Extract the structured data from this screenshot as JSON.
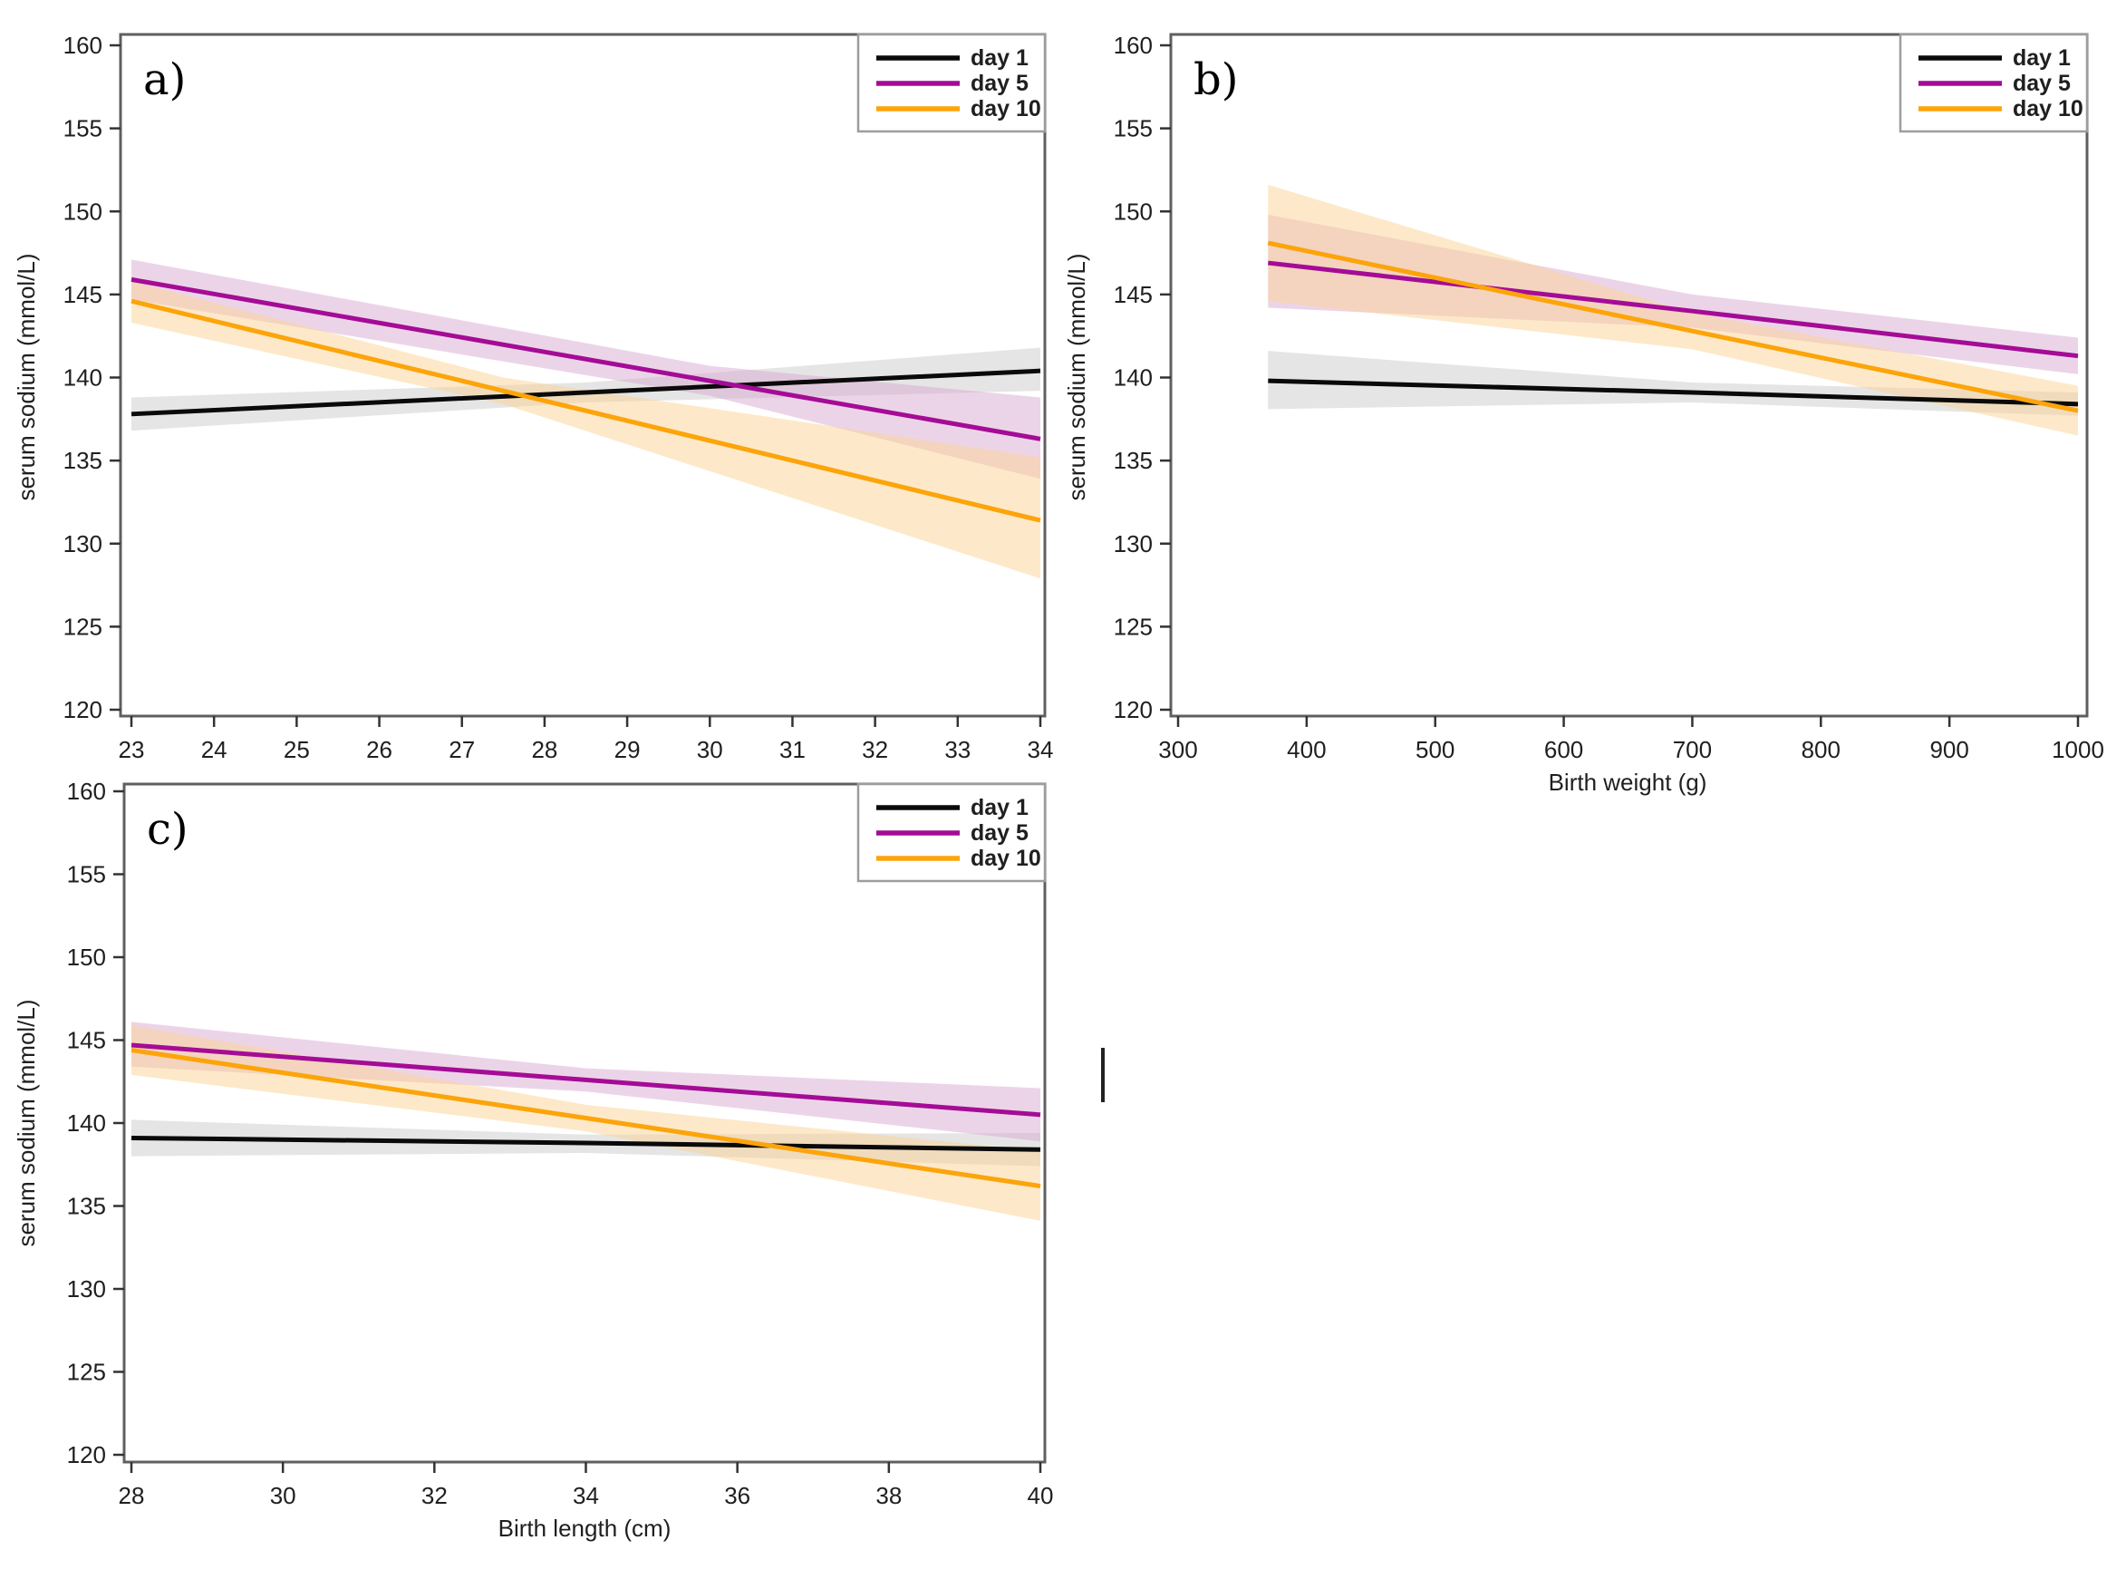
{
  "figure": {
    "background": "#ffffff",
    "colors": {
      "day1": "#0a0a0a",
      "day5": "#a40c96",
      "day10": "#fca40a",
      "band_day1": "#cccccc",
      "band_day5": "#d9a9d2",
      "band_day10": "#fbd494",
      "frame": "#5f5f5f",
      "tick": "#333333",
      "legend_border": "#9d9d9d"
    }
  },
  "chart_data": [
    {
      "type": "line",
      "panel_id": "a",
      "panel_label": "a)",
      "title": "",
      "xlabel": "",
      "ylabel": "serum sodium (mmol/L)",
      "xlim": [
        23,
        34
      ],
      "ylim": [
        120,
        160
      ],
      "x_ticks": [
        23,
        24,
        25,
        26,
        27,
        28,
        29,
        30,
        31,
        32,
        33,
        34
      ],
      "y_ticks": [
        120,
        125,
        130,
        135,
        140,
        145,
        150,
        155,
        160
      ],
      "legend": [
        {
          "key": "day1",
          "label": "day 1"
        },
        {
          "key": "day5",
          "label": "day 5"
        },
        {
          "key": "day10",
          "label": "day 10"
        }
      ],
      "series": [
        {
          "key": "day1",
          "name": "day 1",
          "x": [
            23,
            28.5,
            34
          ],
          "y": [
            137.8,
            139.1,
            140.4
          ],
          "ci_upper": [
            138.8,
            139.7,
            141.8
          ],
          "ci_lower": [
            136.8,
            138.5,
            139.2
          ]
        },
        {
          "key": "day5",
          "name": "day 5",
          "x": [
            23,
            30,
            34
          ],
          "y": [
            145.9,
            139.8,
            136.3
          ],
          "ci_upper": [
            147.1,
            140.7,
            138.8
          ],
          "ci_lower": [
            144.7,
            138.9,
            133.9
          ]
        },
        {
          "key": "day10",
          "name": "day 10",
          "x": [
            23,
            27.5,
            34
          ],
          "y": [
            144.6,
            139.2,
            131.4
          ],
          "ci_upper": [
            145.8,
            140.0,
            135.2
          ],
          "ci_lower": [
            143.3,
            138.4,
            127.9
          ]
        }
      ]
    },
    {
      "type": "line",
      "panel_id": "b",
      "panel_label": "b)",
      "title": "",
      "xlabel": "Birth weight (g)",
      "ylabel": "serum sodium (mmol/L)",
      "xlim": [
        300,
        1000
      ],
      "ylim": [
        120,
        160
      ],
      "x_ticks": [
        300,
        400,
        500,
        600,
        700,
        800,
        900,
        1000
      ],
      "y_ticks": [
        120,
        125,
        130,
        135,
        140,
        145,
        150,
        155,
        160
      ],
      "legend": [
        {
          "key": "day1",
          "label": "day 1"
        },
        {
          "key": "day5",
          "label": "day 5"
        },
        {
          "key": "day10",
          "label": "day 10"
        }
      ],
      "series": [
        {
          "key": "day1",
          "name": "day 1",
          "x": [
            370,
            700,
            1000
          ],
          "y": [
            139.8,
            139.1,
            138.4
          ],
          "ci_upper": [
            141.6,
            139.7,
            139.1
          ],
          "ci_lower": [
            138.1,
            138.5,
            137.7
          ]
        },
        {
          "key": "day5",
          "name": "day 5",
          "x": [
            370,
            700,
            1000
          ],
          "y": [
            146.9,
            144.0,
            141.3
          ],
          "ci_upper": [
            149.8,
            145.0,
            142.4
          ],
          "ci_lower": [
            144.2,
            143.0,
            140.2
          ]
        },
        {
          "key": "day10",
          "name": "day 10",
          "x": [
            370,
            700,
            1000
          ],
          "y": [
            148.1,
            142.8,
            138.0
          ],
          "ci_upper": [
            151.6,
            143.9,
            139.5
          ],
          "ci_lower": [
            144.6,
            141.7,
            136.5
          ]
        }
      ]
    },
    {
      "type": "line",
      "panel_id": "c",
      "panel_label": "c)",
      "title": "",
      "xlabel": "Birth length (cm)",
      "ylabel": "serum sodium (mmol/L)",
      "xlim": [
        28,
        40
      ],
      "ylim": [
        120,
        160
      ],
      "x_ticks": [
        28,
        30,
        32,
        34,
        36,
        38,
        40
      ],
      "y_ticks": [
        120,
        125,
        130,
        135,
        140,
        145,
        150,
        155,
        160
      ],
      "legend": [
        {
          "key": "day1",
          "label": "day 1"
        },
        {
          "key": "day5",
          "label": "day 5"
        },
        {
          "key": "day10",
          "label": "day 10"
        }
      ],
      "series": [
        {
          "key": "day1",
          "name": "day 1",
          "x": [
            28,
            34,
            40
          ],
          "y": [
            139.1,
            138.8,
            138.4
          ],
          "ci_upper": [
            140.2,
            139.3,
            139.4
          ],
          "ci_lower": [
            138.0,
            138.2,
            137.4
          ]
        },
        {
          "key": "day5",
          "name": "day 5",
          "x": [
            28,
            34,
            40
          ],
          "y": [
            144.7,
            142.6,
            140.5
          ],
          "ci_upper": [
            146.1,
            143.3,
            142.1
          ],
          "ci_lower": [
            143.4,
            141.9,
            138.9
          ]
        },
        {
          "key": "day10",
          "name": "day 10",
          "x": [
            28,
            34,
            40
          ],
          "y": [
            144.4,
            140.3,
            136.2
          ],
          "ci_upper": [
            145.9,
            141.1,
            138.3
          ],
          "ci_lower": [
            142.9,
            139.5,
            134.1
          ]
        }
      ]
    }
  ]
}
